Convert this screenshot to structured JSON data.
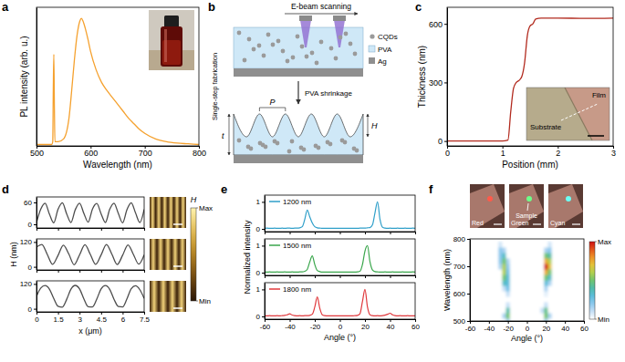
{
  "chart_data": [
    {
      "panel": "a",
      "type": "line",
      "x_label": "Wavelength (nm)",
      "y_label": "PL intensity (arb. u.)",
      "x": [
        500,
        510,
        520,
        528,
        530,
        531,
        532,
        533,
        534,
        540,
        550,
        560,
        565,
        570,
        575,
        580,
        583,
        586,
        590,
        595,
        600,
        610,
        620,
        630,
        640,
        650,
        660,
        670,
        680,
        690,
        700,
        720,
        740,
        760,
        780,
        800
      ],
      "values": [
        0.01,
        0.01,
        0.01,
        0.01,
        0.03,
        0.4,
        0.66,
        0.3,
        0.03,
        0.03,
        0.05,
        0.2,
        0.4,
        0.62,
        0.8,
        0.9,
        0.92,
        0.9,
        0.85,
        0.77,
        0.68,
        0.55,
        0.46,
        0.4,
        0.35,
        0.3,
        0.25,
        0.2,
        0.16,
        0.12,
        0.09,
        0.05,
        0.03,
        0.02,
        0.015,
        0.01
      ],
      "color": "#f5a12e",
      "xlim": [
        500,
        800
      ],
      "xticks": [
        500,
        600,
        700,
        800
      ],
      "ylim": [
        0,
        1
      ],
      "tick_labels": "x"
    },
    {
      "panel": "c",
      "type": "line",
      "x_label": "Position (mm)",
      "y_label": "Thickness (nm)",
      "x": [
        0,
        0.5,
        1.0,
        1.1,
        1.15,
        1.2,
        1.25,
        1.3,
        1.35,
        1.4,
        1.45,
        1.5,
        1.55,
        1.6,
        1.7,
        2,
        2.5,
        3
      ],
      "values": [
        0,
        0,
        0,
        5,
        150,
        270,
        300,
        310,
        330,
        400,
        540,
        590,
        600,
        625,
        630,
        630,
        628,
        630
      ],
      "color": "#b22a1e",
      "xlim": [
        0,
        3
      ],
      "xticks": [
        0,
        1,
        2,
        3
      ],
      "ylim": [
        -25,
        685
      ],
      "yticks": [
        0,
        300,
        600
      ],
      "inset_labels": [
        "Film",
        "Substrate"
      ]
    },
    {
      "panel": "d",
      "type": "line",
      "x": [
        0,
        0.3,
        0.6,
        0.9,
        1.2,
        1.5,
        1.8,
        2.1,
        2.4,
        2.7,
        3,
        3.3,
        3.6,
        3.9,
        4.2,
        4.5,
        4.8,
        5.1,
        5.4,
        5.7,
        6,
        6.3,
        6.6,
        6.9,
        7.2,
        7.5
      ],
      "values": [
        5,
        42,
        58,
        28,
        4,
        41,
        59,
        29,
        5,
        40,
        58,
        30,
        6,
        42,
        57,
        29,
        5,
        41,
        58,
        30,
        4,
        40,
        59,
        31,
        5,
        41
      ],
      "color": "#4d4d4d",
      "xlim": [
        0,
        7.5
      ],
      "xticks": [
        0,
        1.5,
        3,
        4.5,
        6,
        7.5
      ],
      "ylim": [
        -10,
        75
      ],
      "yticks": [
        0,
        60
      ],
      "tick_labels": "y",
      "colorbar_title": "H",
      "colorbar_range": [
        0,
        1
      ],
      "colorbar_ticks": [
        {
          "value": 0,
          "label": "Min"
        },
        {
          "value": 1,
          "label": "Max"
        }
      ]
    },
    {
      "type": "line",
      "y_label": "H (nm)",
      "x": [
        0,
        0.375,
        0.75,
        1.125,
        1.5,
        1.875,
        2.25,
        2.625,
        3,
        3.375,
        3.75,
        4.125,
        4.5,
        4.875,
        5.25,
        5.625,
        6,
        6.375,
        6.75,
        7.125,
        7.5
      ],
      "values": [
        95,
        108,
        60,
        12,
        55,
        105,
        62,
        10,
        58,
        107,
        60,
        12,
        57,
        108,
        61,
        11,
        56,
        106,
        60,
        13,
        58
      ],
      "color": "#4d4d4d",
      "xlim": [
        0,
        7.5
      ],
      "xticks": [
        0,
        1.5,
        3,
        4.5,
        6,
        7.5
      ],
      "ylim": [
        -15,
        135
      ],
      "yticks": [
        0,
        120
      ],
      "tick_labels": "y"
    },
    {
      "type": "line",
      "x_label": "x (μm)",
      "x": [
        0,
        0.3,
        0.6,
        0.9,
        1.2,
        1.5,
        1.8,
        2.1,
        2.4,
        2.7,
        3,
        3.3,
        3.6,
        3.9,
        4.2,
        4.5,
        4.8,
        5.1,
        5.4,
        5.7,
        6,
        6.3,
        6.6,
        6.9,
        7.2,
        7.5
      ],
      "values": [
        60,
        100,
        112,
        95,
        50,
        12,
        8,
        45,
        95,
        113,
        96,
        48,
        10,
        9,
        47,
        96,
        112,
        94,
        46,
        11,
        9,
        48,
        97,
        111,
        92,
        50
      ],
      "color": "#4d4d4d",
      "xlim": [
        0,
        7.5
      ],
      "xticks": [
        0,
        1.5,
        3,
        4.5,
        6,
        7.5
      ],
      "ylim": [
        -15,
        135
      ],
      "yticks": [
        0,
        120
      ]
    },
    {
      "panel": "e",
      "type": "line",
      "x": [
        -60,
        -58,
        -56,
        -54,
        -52,
        -50,
        -48,
        -46,
        -44,
        -42,
        -40,
        -38,
        -36,
        -34,
        -32,
        -30,
        -28,
        -26,
        -24,
        -22,
        -20,
        -18,
        -16,
        -14,
        -12,
        -10,
        -8,
        -6,
        -4,
        -2,
        0,
        2,
        4,
        6,
        8,
        10,
        12,
        14,
        16,
        18,
        20,
        22,
        24,
        26,
        28,
        30,
        32,
        34,
        36,
        38,
        40,
        42,
        44,
        46,
        48,
        50,
        52,
        54,
        56,
        58,
        60
      ],
      "series": [
        {
          "name": "1200 nm",
          "color": "#2f9fc9",
          "values": [
            0.02,
            0.03,
            0.02,
            0.02,
            0.03,
            0.02,
            0.02,
            0.03,
            0.02,
            0.03,
            0.03,
            0.02,
            0.03,
            0.03,
            0.04,
            0.08,
            0.35,
            0.7,
            0.45,
            0.22,
            0.08,
            0.04,
            0.03,
            0.02,
            0.02,
            0.02,
            0.02,
            0.02,
            0.02,
            0.02,
            0.02,
            0.02,
            0.02,
            0.02,
            0.02,
            0.02,
            0.02,
            0.02,
            0.03,
            0.03,
            0.03,
            0.04,
            0.05,
            0.15,
            0.6,
            1.0,
            0.35,
            0.06,
            0.03,
            0.02,
            0.03,
            0.02,
            0.02,
            0.03,
            0.02,
            0.02,
            0.03,
            0.02,
            0.02,
            0.03,
            0.02
          ]
        }
      ],
      "xlim": [
        -60,
        60
      ],
      "xticks": [
        -60,
        -40,
        -20,
        0,
        20,
        40,
        60
      ],
      "ylim": [
        -0.1,
        1.25
      ],
      "yticks": [
        0,
        1
      ],
      "tick_labels": "y"
    },
    {
      "type": "line",
      "y_label": "Normalized intensity",
      "x": [
        -60,
        -58,
        -56,
        -54,
        -52,
        -50,
        -48,
        -46,
        -44,
        -42,
        -40,
        -38,
        -36,
        -34,
        -32,
        -30,
        -28,
        -26,
        -24,
        -22,
        -20,
        -18,
        -16,
        -14,
        -12,
        -10,
        -8,
        -6,
        -4,
        -2,
        0,
        2,
        4,
        6,
        8,
        10,
        12,
        14,
        16,
        18,
        20,
        22,
        24,
        26,
        28,
        30,
        32,
        34,
        36,
        38,
        40,
        42,
        44,
        46,
        48,
        50,
        52,
        54,
        56,
        58,
        60
      ],
      "series": [
        {
          "name": "1500 nm",
          "color": "#3aa64c",
          "values": [
            0.02,
            0.02,
            0.03,
            0.02,
            0.02,
            0.03,
            0.02,
            0.02,
            0.03,
            0.02,
            0.02,
            0.03,
            0.02,
            0.02,
            0.03,
            0.03,
            0.05,
            0.12,
            0.4,
            0.62,
            0.3,
            0.08,
            0.04,
            0.02,
            0.02,
            0.02,
            0.02,
            0.02,
            0.02,
            0.02,
            0.02,
            0.02,
            0.02,
            0.02,
            0.02,
            0.02,
            0.02,
            0.03,
            0.05,
            0.3,
            0.8,
            1.0,
            0.4,
            0.1,
            0.04,
            0.03,
            0.02,
            0.02,
            0.03,
            0.02,
            0.02,
            0.03,
            0.02,
            0.02,
            0.02,
            0.03,
            0.02,
            0.02,
            0.02,
            0.03,
            0.02
          ]
        }
      ],
      "xlim": [
        -60,
        60
      ],
      "xticks": [
        -60,
        -40,
        -20,
        0,
        20,
        40,
        60
      ],
      "ylim": [
        -0.1,
        1.25
      ],
      "yticks": [
        0,
        1
      ],
      "tick_labels": "y"
    },
    {
      "type": "line",
      "x_label": "Angle (°)",
      "x": [
        -60,
        -58,
        -56,
        -54,
        -52,
        -50,
        -48,
        -46,
        -44,
        -42,
        -40,
        -38,
        -36,
        -34,
        -32,
        -30,
        -28,
        -26,
        -24,
        -22,
        -20,
        -18,
        -16,
        -14,
        -12,
        -10,
        -8,
        -6,
        -4,
        -2,
        0,
        2,
        4,
        6,
        8,
        10,
        12,
        14,
        16,
        18,
        20,
        22,
        24,
        26,
        28,
        30,
        32,
        34,
        36,
        38,
        40,
        42,
        44,
        46,
        48,
        50,
        52,
        54,
        56,
        58,
        60
      ],
      "series": [
        {
          "name": "1800 nm",
          "color": "#e0383c",
          "values": [
            0.02,
            0.02,
            0.03,
            0.02,
            0.02,
            0.03,
            0.02,
            0.03,
            0.04,
            0.06,
            0.1,
            0.05,
            0.03,
            0.02,
            0.03,
            0.02,
            0.03,
            0.03,
            0.04,
            0.08,
            0.35,
            0.72,
            0.3,
            0.06,
            0.03,
            0.02,
            0.02,
            0.02,
            0.02,
            0.02,
            0.02,
            0.02,
            0.02,
            0.02,
            0.02,
            0.02,
            0.03,
            0.04,
            0.1,
            0.55,
            1.0,
            0.35,
            0.06,
            0.03,
            0.02,
            0.03,
            0.02,
            0.03,
            0.05,
            0.08,
            0.12,
            0.06,
            0.03,
            0.02,
            0.03,
            0.02,
            0.02,
            0.03,
            0.02,
            0.02,
            0.02
          ]
        }
      ],
      "xlim": [
        -60,
        60
      ],
      "xticks": [
        -60,
        -40,
        -20,
        0,
        20,
        40,
        60
      ],
      "ylim": [
        -0.1,
        1.25
      ],
      "yticks": [
        0,
        1
      ]
    },
    {
      "panel": "f",
      "type": "heatmap",
      "x_label": "Angle (°)",
      "y_label": "Wavelength (nm)",
      "x": [
        -32,
        -28,
        -24,
        -20,
        -16,
        -12,
        -8,
        -4,
        0,
        4,
        8,
        12,
        16,
        20,
        24,
        28,
        32
      ],
      "y": [
        500,
        520,
        540,
        560,
        580,
        600,
        620,
        640,
        660,
        680,
        700,
        720,
        740,
        760,
        780
      ],
      "z": [
        [
          0,
          0,
          0,
          0.15,
          0,
          0,
          0,
          0,
          0,
          0,
          0,
          0,
          0,
          0.15,
          0,
          0,
          0
        ],
        [
          0,
          0,
          0.15,
          0.5,
          0,
          0,
          0,
          0,
          0,
          0,
          0,
          0,
          0,
          0.5,
          0.15,
          0,
          0
        ],
        [
          0,
          0,
          0,
          0.4,
          0,
          0,
          0,
          0,
          0,
          0,
          0,
          0,
          0.1,
          0.45,
          0,
          0,
          0
        ],
        [
          0,
          0,
          0,
          0.1,
          0,
          0,
          0,
          0,
          0,
          0,
          0,
          0,
          0,
          0.1,
          0,
          0,
          0
        ],
        [
          0,
          0,
          0,
          0,
          0,
          0,
          0,
          0,
          0,
          0,
          0,
          0,
          0,
          0,
          0,
          0,
          0
        ],
        [
          0,
          0,
          0,
          0.1,
          0,
          0,
          0,
          0,
          0,
          0,
          0,
          0,
          0,
          0.05,
          0,
          0,
          0
        ],
        [
          0,
          0,
          0.1,
          0.25,
          0,
          0,
          0,
          0,
          0,
          0,
          0,
          0,
          0,
          0.15,
          0,
          0,
          0
        ],
        [
          0,
          0,
          0.35,
          0.3,
          0,
          0,
          0,
          0,
          0,
          0,
          0,
          0,
          0,
          0.3,
          0.15,
          0,
          0
        ],
        [
          0,
          0,
          0.5,
          0.3,
          0,
          0,
          0,
          0,
          0,
          0,
          0,
          0,
          0,
          0.5,
          0.35,
          0,
          0
        ],
        [
          0,
          0,
          0.6,
          0.25,
          0,
          0,
          0,
          0,
          0,
          0,
          0,
          0,
          0,
          0.75,
          0.5,
          0,
          0
        ],
        [
          0,
          0.15,
          0.6,
          0.2,
          0,
          0,
          0,
          0,
          0,
          0,
          0,
          0,
          0,
          1.0,
          0.7,
          0,
          0
        ],
        [
          0,
          0.2,
          0.5,
          0.15,
          0,
          0,
          0,
          0,
          0,
          0,
          0,
          0,
          0,
          0.75,
          0.6,
          0,
          0
        ],
        [
          0,
          0.2,
          0.35,
          0,
          0,
          0,
          0,
          0,
          0,
          0,
          0,
          0,
          0,
          0.5,
          0.4,
          0,
          0
        ],
        [
          0,
          0.2,
          0.15,
          0,
          0,
          0,
          0,
          0,
          0,
          0,
          0,
          0,
          0,
          0.15,
          0.2,
          0,
          0
        ],
        [
          0,
          0.08,
          0,
          0,
          0,
          0,
          0,
          0,
          0,
          0,
          0,
          0,
          0,
          0,
          0.08,
          0,
          0
        ]
      ],
      "xlim": [
        -60,
        60
      ],
      "xticks": [
        -60,
        -40,
        -20,
        0,
        20,
        40,
        60
      ],
      "ylim": [
        500,
        800
      ],
      "yticks": [
        500,
        600,
        700,
        800
      ],
      "colorbar_range": [
        0,
        1
      ],
      "colorbar_ticks": [
        {
          "value": 0,
          "label": "Min"
        },
        {
          "value": 1,
          "label": "Max"
        }
      ],
      "photo_labels": [
        "Red",
        "Green",
        "Cyan"
      ],
      "annotation": "Sample"
    }
  ],
  "diagram": {
    "panel": "b",
    "beam": "E-beam scanning",
    "cqds": "CQDs",
    "pva": "PVA",
    "ag": "Ag",
    "step": "Single-step fabrication",
    "shrink": "PVA shrinkage",
    "period": "P",
    "height": "H",
    "thickness": "t"
  }
}
